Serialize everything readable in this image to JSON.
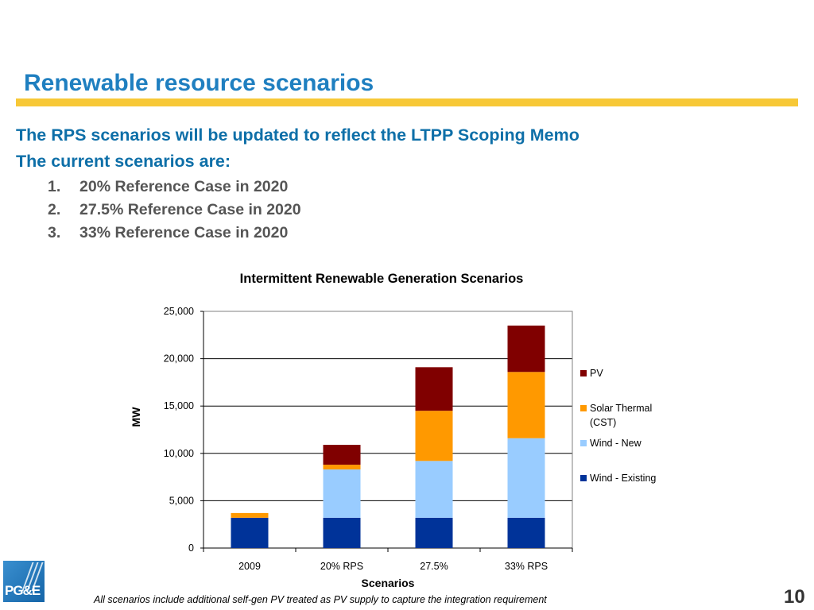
{
  "slide": {
    "title": "Renewable resource scenarios",
    "headline_1": "The RPS scenarios will be updated to reflect the LTPP Scoping Memo",
    "headline_2": "The current scenarios are:",
    "list": [
      {
        "num": "1.",
        "text": "20% Reference Case in 2020"
      },
      {
        "num": "2.",
        "text": "27.5% Reference Case in 2020"
      },
      {
        "num": "3.",
        "text": "33% Reference Case in 2020"
      }
    ],
    "footnote": "All scenarios include additional self-gen PV treated as PV supply to capture the integration requirement",
    "page_number": "10",
    "logo_text": "PG&E"
  },
  "colors": {
    "title": "#1f7fc0",
    "rule": "#f7c837",
    "headline": "#0e6fa8",
    "list": "#555555"
  },
  "chart_data": {
    "type": "bar",
    "stacked": true,
    "title": "Intermittent Renewable Generation Scenarios",
    "xlabel": "Scenarios",
    "ylabel": "MW",
    "ylim": [
      0,
      25000
    ],
    "yticks": [
      0,
      5000,
      10000,
      15000,
      20000,
      25000
    ],
    "ytick_labels": [
      "0",
      "5,000",
      "10,000",
      "15,000",
      "20,000",
      "25,000"
    ],
    "categories": [
      "2009",
      "20% RPS",
      "27.5%",
      "33% RPS"
    ],
    "grid": true,
    "legend_position": "right",
    "series": [
      {
        "name": "Wind - Existing",
        "color": "#003399",
        "values": [
          3200,
          3200,
          3200,
          3200
        ]
      },
      {
        "name": "Wind - New",
        "color": "#99ccff",
        "values": [
          0,
          5100,
          6000,
          8400
        ]
      },
      {
        "name": "Solar Thermal (CST)",
        "color": "#ff9900",
        "values": [
          500,
          500,
          5300,
          7000
        ]
      },
      {
        "name": "PV",
        "color": "#800000",
        "values": [
          0,
          2100,
          4600,
          4900
        ]
      }
    ],
    "legend_order": [
      "PV",
      "Solar Thermal (CST)",
      "Wind - New",
      "Wind - Existing"
    ]
  }
}
